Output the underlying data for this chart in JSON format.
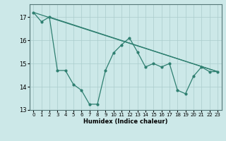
{
  "xlabel": "Humidex (Indice chaleur)",
  "background_color": "#cce8e8",
  "grid_color": "#aacccc",
  "line_color": "#2e7f70",
  "xlim": [
    -0.5,
    23.5
  ],
  "ylim": [
    13.0,
    17.55
  ],
  "yticks": [
    13,
    14,
    15,
    16,
    17
  ],
  "xticks": [
    0,
    1,
    2,
    3,
    4,
    5,
    6,
    7,
    8,
    9,
    10,
    11,
    12,
    13,
    14,
    15,
    16,
    17,
    18,
    19,
    20,
    21,
    22,
    23
  ],
  "line1_x": [
    0,
    1,
    2,
    3,
    4,
    5,
    6,
    7,
    8,
    9,
    10,
    11,
    12,
    13,
    14,
    15,
    16,
    17,
    18,
    19,
    20,
    21,
    22,
    23
  ],
  "line1_y": [
    17.2,
    16.8,
    17.0,
    14.7,
    14.7,
    14.1,
    13.85,
    13.25,
    13.25,
    14.7,
    15.45,
    15.8,
    16.1,
    15.5,
    14.85,
    15.0,
    14.85,
    15.0,
    13.85,
    13.7,
    14.45,
    14.85,
    14.65,
    14.65
  ],
  "line2_x": [
    0,
    23
  ],
  "line2_y": [
    17.2,
    14.65
  ],
  "line3_x": [
    2,
    23
  ],
  "line3_y": [
    17.0,
    14.65
  ]
}
